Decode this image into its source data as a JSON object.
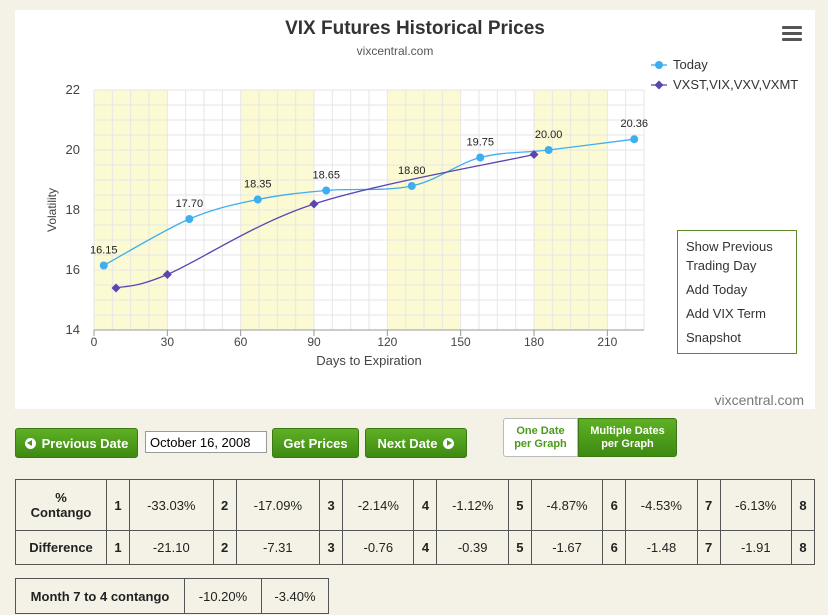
{
  "chart": {
    "title": "VIX Futures Historical Prices",
    "subtitle": "vixcentral.com",
    "credit": "vixcentral.com",
    "menu": {
      "items": [
        "Show Previous Trading Day",
        "Add Today",
        "Add VIX Term",
        "Snapshot"
      ]
    }
  },
  "chart_data": {
    "type": "line",
    "title": "VIX Futures Historical Prices",
    "subtitle": "vixcentral.com",
    "xlabel": "Days to Expiration",
    "ylabel": "Volatility",
    "xlim": [
      0,
      225
    ],
    "ylim": [
      14,
      22
    ],
    "x_ticks": [
      0,
      30,
      60,
      90,
      120,
      150,
      180,
      210
    ],
    "y_ticks": [
      14,
      16,
      18,
      20,
      22
    ],
    "legend_position": "top-right",
    "shaded_bands": [
      [
        0,
        30
      ],
      [
        60,
        90
      ],
      [
        120,
        150
      ],
      [
        180,
        210
      ]
    ],
    "series": [
      {
        "name": "Today",
        "color": "#3eaef0",
        "marker": "circle",
        "x": [
          4,
          39,
          67,
          95,
          130,
          158,
          186,
          221
        ],
        "y": [
          16.15,
          17.7,
          18.35,
          18.65,
          18.8,
          19.75,
          20.0,
          20.36
        ],
        "labels": [
          "16.15",
          "17.70",
          "18.35",
          "18.65",
          "18.80",
          "19.75",
          "20.00",
          "20.36"
        ]
      },
      {
        "name": "VXST,VIX,VXV,VXMT",
        "color": "#5b45b0",
        "marker": "diamond",
        "x": [
          9,
          30,
          90,
          180
        ],
        "y": [
          15.4,
          15.85,
          18.2,
          19.85
        ]
      }
    ]
  },
  "controls": {
    "prev_label": "Previous Date",
    "date_value": "October 16, 2008",
    "get_label": "Get Prices",
    "next_label": "Next Date",
    "toggle_one_line1": "One Date",
    "toggle_one_line2": "per Graph",
    "toggle_multi_line1": "Multiple Dates",
    "toggle_multi_line2": "per Graph"
  },
  "contango_table": {
    "row1_header_line1": "%",
    "row1_header_line2": "Contango",
    "row2_header": "Difference",
    "months": [
      "1",
      "2",
      "3",
      "4",
      "5",
      "6",
      "7",
      "8"
    ],
    "contango": [
      "-33.03%",
      "-17.09%",
      "-2.14%",
      "-1.12%",
      "-4.87%",
      "-4.53%",
      "-6.13%"
    ],
    "difference": [
      "-21.10",
      "-7.31",
      "-0.76",
      "-0.39",
      "-1.67",
      "-1.48",
      "-1.91"
    ]
  },
  "month_table": {
    "label": "Month 7 to 4 contango",
    "values": [
      "-10.20%",
      "-3.40%"
    ]
  }
}
